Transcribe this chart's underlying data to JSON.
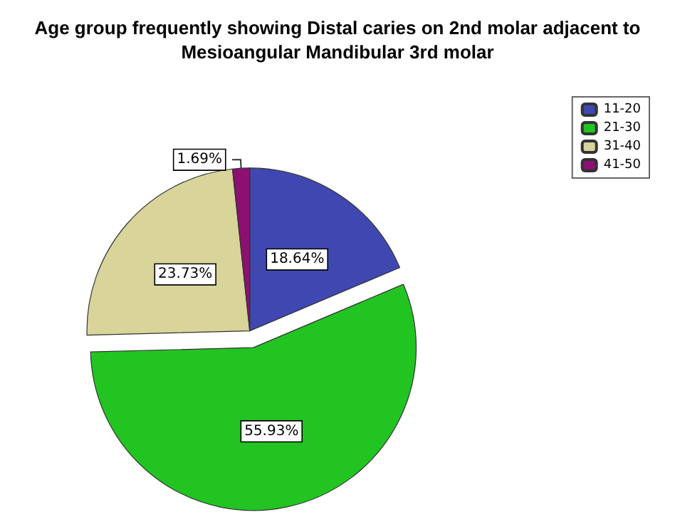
{
  "chart_data": {
    "type": "pie",
    "title": "Age group frequently showing Distal caries on 2nd molar adjacent to\nMesioangular Mandibular 3rd molar",
    "categories": [
      "11-20",
      "21-30",
      "31-40",
      "41-50"
    ],
    "values": [
      18.64,
      55.93,
      23.73,
      1.69
    ],
    "value_labels": [
      "18.64%",
      "55.93%",
      "23.73%",
      "1.69%"
    ],
    "colors": [
      "#3f48b0",
      "#22c422",
      "#d8d49a",
      "#8b1070"
    ],
    "legend": "top right"
  }
}
